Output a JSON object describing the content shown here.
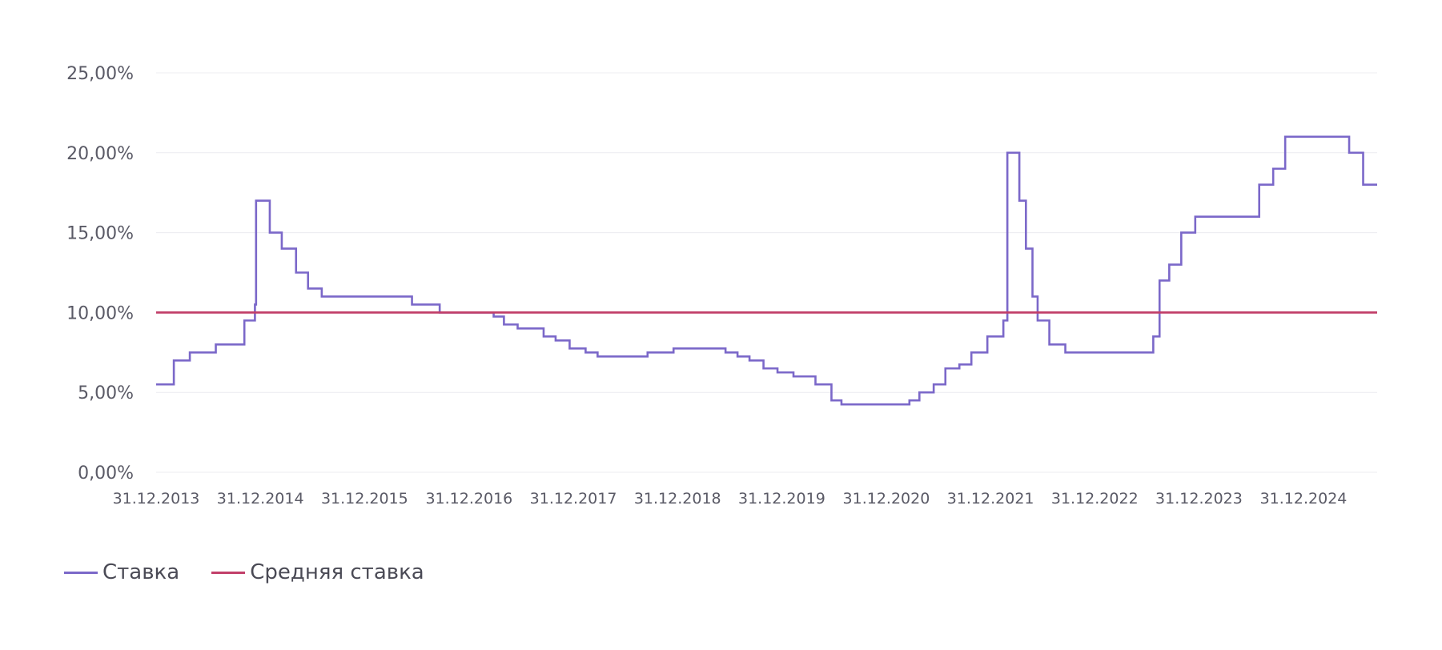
{
  "chart_data": {
    "type": "line",
    "ylim": [
      0,
      25
    ],
    "y_ticks": [
      "0,00%",
      "5,00%",
      "10,00%",
      "15,00%",
      "20,00%",
      "25,00%"
    ],
    "x_range": [
      "2013-12-31",
      "2025-09-15"
    ],
    "x_ticks": [
      "31.12.2013",
      "31.12.2014",
      "31.12.2015",
      "31.12.2016",
      "31.12.2017",
      "31.12.2018",
      "31.12.2019",
      "31.12.2020",
      "31.12.2021",
      "31.12.2022",
      "31.12.2023",
      "31.12.2024"
    ],
    "grid": true,
    "legend_position": "bottom-left",
    "series": [
      {
        "name": "Ставка",
        "color": "#7b68c9",
        "step": true,
        "points": [
          [
            "2013-12-31",
            5.5
          ],
          [
            "2014-03-03",
            7.0
          ],
          [
            "2014-04-28",
            7.5
          ],
          [
            "2014-07-28",
            8.0
          ],
          [
            "2014-11-05",
            9.5
          ],
          [
            "2014-12-12",
            10.5
          ],
          [
            "2014-12-16",
            17.0
          ],
          [
            "2015-02-02",
            15.0
          ],
          [
            "2015-03-16",
            14.0
          ],
          [
            "2015-05-05",
            12.5
          ],
          [
            "2015-06-16",
            11.5
          ],
          [
            "2015-08-03",
            11.0
          ],
          [
            "2016-06-14",
            10.5
          ],
          [
            "2016-09-19",
            10.0
          ],
          [
            "2017-03-27",
            9.75
          ],
          [
            "2017-05-02",
            9.25
          ],
          [
            "2017-06-19",
            9.0
          ],
          [
            "2017-09-18",
            8.5
          ],
          [
            "2017-10-30",
            8.25
          ],
          [
            "2017-12-18",
            7.75
          ],
          [
            "2018-02-12",
            7.5
          ],
          [
            "2018-03-26",
            7.25
          ],
          [
            "2018-09-17",
            7.5
          ],
          [
            "2018-12-17",
            7.75
          ],
          [
            "2019-06-17",
            7.5
          ],
          [
            "2019-07-29",
            7.25
          ],
          [
            "2019-09-09",
            7.0
          ],
          [
            "2019-10-28",
            6.5
          ],
          [
            "2019-12-16",
            6.25
          ],
          [
            "2020-02-10",
            6.0
          ],
          [
            "2020-04-27",
            5.5
          ],
          [
            "2020-06-22",
            4.5
          ],
          [
            "2020-07-27",
            4.25
          ],
          [
            "2021-03-22",
            4.5
          ],
          [
            "2021-04-26",
            5.0
          ],
          [
            "2021-06-15",
            5.5
          ],
          [
            "2021-07-26",
            6.5
          ],
          [
            "2021-09-13",
            6.75
          ],
          [
            "2021-10-25",
            7.5
          ],
          [
            "2021-12-20",
            8.5
          ],
          [
            "2022-02-14",
            9.5
          ],
          [
            "2022-02-28",
            20.0
          ],
          [
            "2022-04-11",
            17.0
          ],
          [
            "2022-05-04",
            14.0
          ],
          [
            "2022-05-27",
            11.0
          ],
          [
            "2022-06-14",
            9.5
          ],
          [
            "2022-07-25",
            8.0
          ],
          [
            "2022-09-19",
            7.5
          ],
          [
            "2023-07-24",
            8.5
          ],
          [
            "2023-08-15",
            12.0
          ],
          [
            "2023-09-18",
            13.0
          ],
          [
            "2023-10-30",
            15.0
          ],
          [
            "2023-12-18",
            16.0
          ],
          [
            "2024-07-29",
            18.0
          ],
          [
            "2024-09-16",
            19.0
          ],
          [
            "2024-10-28",
            21.0
          ],
          [
            "2025-06-09",
            20.0
          ],
          [
            "2025-07-28",
            18.0
          ],
          [
            "2025-09-15",
            18.0
          ]
        ]
      },
      {
        "name": "Средняя ставка",
        "color": "#c2406a",
        "points": [
          [
            "2013-12-31",
            10.0
          ],
          [
            "2025-09-15",
            10.0
          ]
        ]
      }
    ]
  }
}
